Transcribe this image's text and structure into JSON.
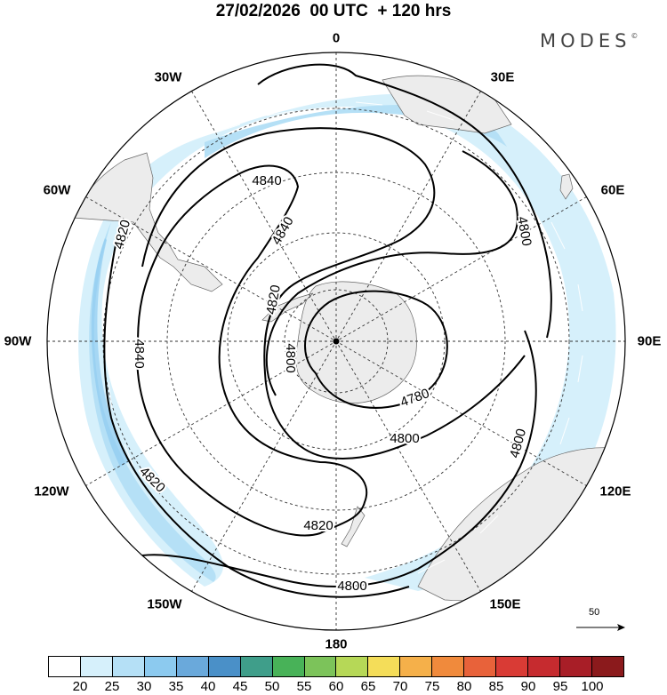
{
  "title": "27/02/2026  00 UTC  + 120 hrs",
  "brand": {
    "text": "MODES",
    "mark": "©"
  },
  "longitude_labels": [
    {
      "id": "0",
      "text": "0"
    },
    {
      "id": "30e",
      "text": "30E"
    },
    {
      "id": "60e",
      "text": "60E"
    },
    {
      "id": "90e",
      "text": "90E"
    },
    {
      "id": "120e",
      "text": "120E"
    },
    {
      "id": "150e",
      "text": "150E"
    },
    {
      "id": "180",
      "text": "180"
    },
    {
      "id": "150w",
      "text": "150W"
    },
    {
      "id": "120w",
      "text": "120W"
    },
    {
      "id": "90w",
      "text": "90W"
    },
    {
      "id": "60w",
      "text": "60W"
    },
    {
      "id": "30w",
      "text": "30W"
    }
  ],
  "contour_labels": [
    "4840",
    "4840",
    "4820",
    "4800",
    "4780",
    "4800",
    "4800",
    "4800",
    "4820",
    "4820",
    "4840",
    "4820",
    "4800"
  ],
  "reference_vector": "50",
  "colorbar": {
    "colors": [
      "#ffffff",
      "#d6f0fb",
      "#b5e0f6",
      "#8ccaef",
      "#6aa9db",
      "#4a90c8",
      "#3f9e8a",
      "#48b258",
      "#7cc35a",
      "#b6d857",
      "#f4dd59",
      "#f5b04a",
      "#f08a3c",
      "#e8623a",
      "#d93b35",
      "#c62b2f",
      "#a81e27",
      "#8b1a1c"
    ],
    "ticks": [
      "20",
      "25",
      "30",
      "35",
      "40",
      "45",
      "50",
      "55",
      "60",
      "65",
      "70",
      "75",
      "80",
      "85",
      "90",
      "95",
      "100"
    ]
  }
}
